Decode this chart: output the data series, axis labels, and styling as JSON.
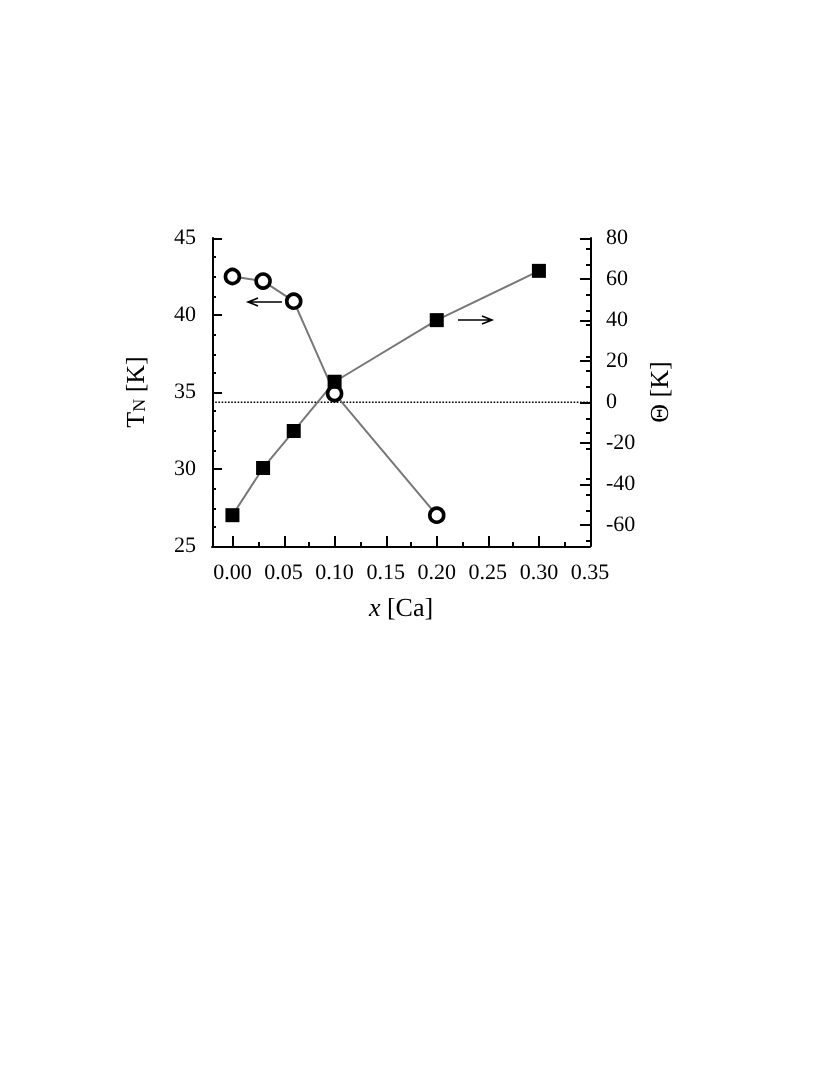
{
  "chart_data": {
    "type": "line",
    "xlabel": "x [Ca]",
    "ylabel": "T$_{N}$ [K]",
    "y2label": "Θ [K]",
    "series": [
      {
        "color": "#000000",
        "marker": "circle",
        "x": [
          0,
          0.03,
          0.06,
          0.1,
          0.2
        ],
        "values": [
          42.5,
          42.2,
          40.9,
          34.9,
          27.0
        ]
      },
      {
        "color": "#000000",
        "marker": "square",
        "axis": "y2",
        "x": [
          0,
          0.03,
          0.06,
          0.1,
          0.2,
          0.3
        ],
        "values": [
          -55,
          -32,
          -14,
          10,
          40,
          64
        ]
      }
    ],
    "xlim": [
      -0.02,
      0.35
    ],
    "xticks": [
      {
        "value": 0,
        "label": "0.00"
      },
      {
        "value": 0.05,
        "label": "0.05"
      },
      {
        "value": 0.1,
        "label": "0.10"
      },
      {
        "value": 0.15,
        "label": "0.15"
      },
      {
        "value": 0.2,
        "label": "0.20"
      },
      {
        "value": 0.25,
        "label": "0.25"
      },
      {
        "value": 0.3,
        "label": "0.30"
      },
      {
        "value": 0.35,
        "label": "0.35"
      }
    ],
    "ylim": [
      25,
      45
    ],
    "yticks": [
      25,
      30,
      35,
      40,
      45
    ],
    "y2lim": [
      -70,
      80
    ],
    "y2ticks": [
      -60,
      -40,
      -20,
      0,
      20,
      40,
      60,
      80
    ],
    "ref_lines": [
      {
        "axis": "y2",
        "value": 0,
        "line_style": "dotted",
        "color": "#000000"
      }
    ],
    "grid": false,
    "line_style": "solid"
  }
}
